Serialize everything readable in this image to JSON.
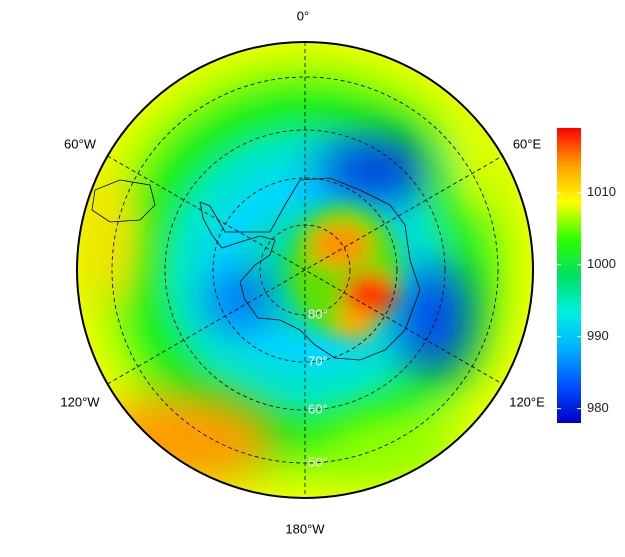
{
  "map": {
    "longitude_labels": [
      "0°",
      "60°E",
      "120°E",
      "180°W",
      "120°W",
      "60°W"
    ],
    "latitude_labels": [
      "80°",
      "70°",
      "60°",
      "50°"
    ]
  },
  "colorbar": {
    "lim": [
      978,
      1019
    ],
    "ticks": [
      980,
      990,
      1000,
      1010
    ],
    "colors": [
      "#0000c8",
      "#0050ff",
      "#00b0ff",
      "#00f0e0",
      "#00e060",
      "#30ff00",
      "#ffff00",
      "#ffa000",
      "#ff0000"
    ]
  }
}
